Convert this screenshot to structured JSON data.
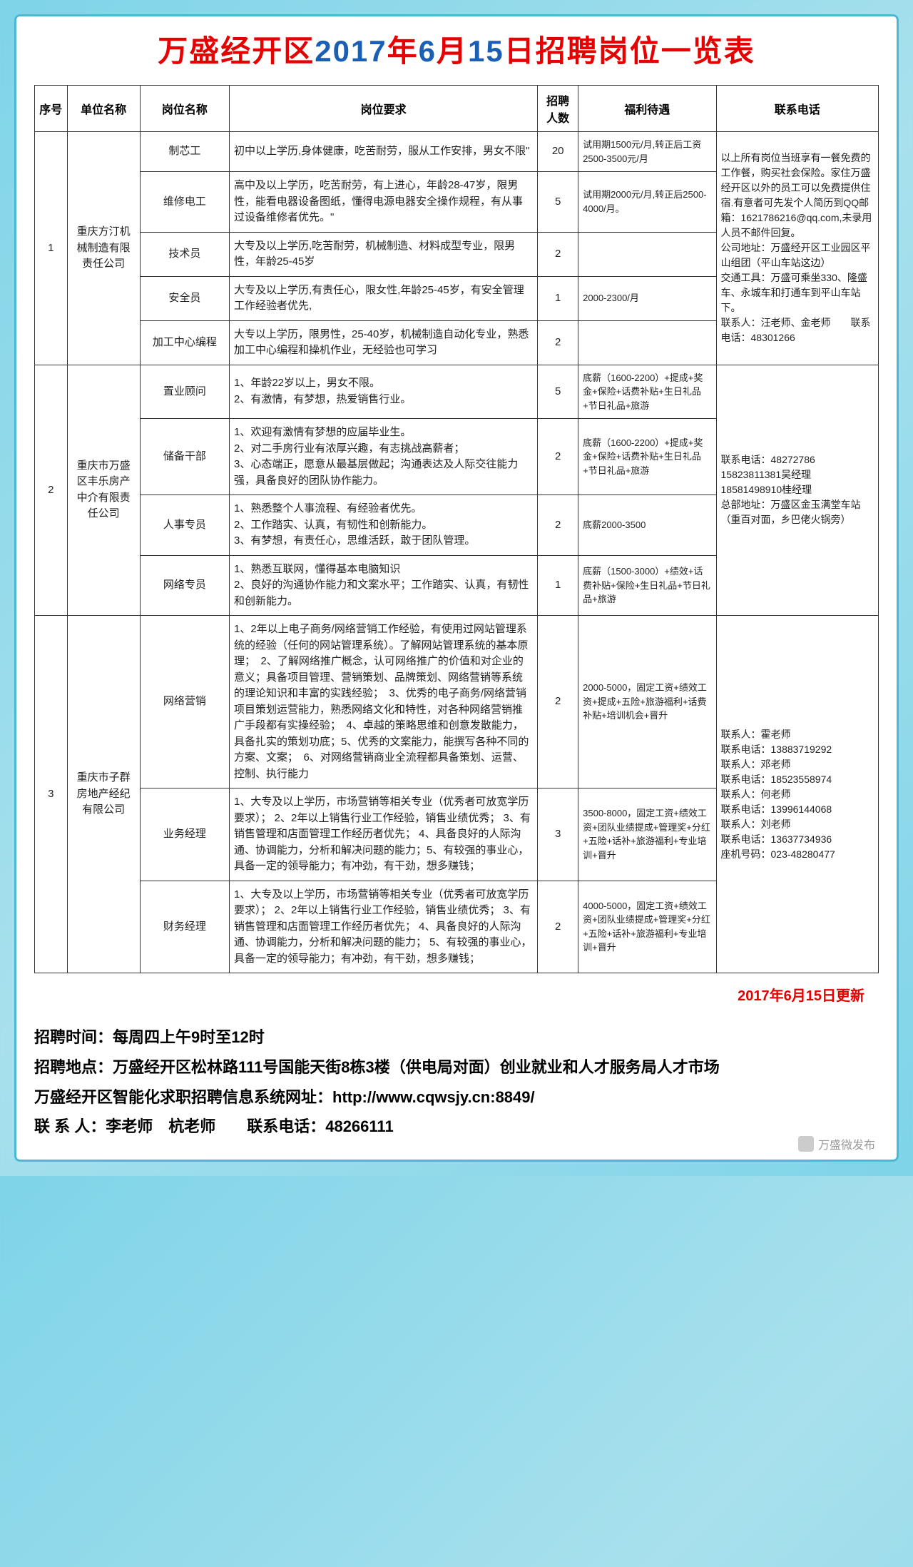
{
  "title_parts": {
    "p1": "万盛经开区",
    "p2": "2017",
    "p3": "年",
    "p4": "6",
    "p5": "月",
    "p6": "15",
    "p7": "日招聘岗位一览表"
  },
  "headers": {
    "seq": "序号",
    "company": "单位名称",
    "position": "岗位名称",
    "req": "岗位要求",
    "count": "招聘人数",
    "benefit": "福利待遇",
    "contact": "联系电话"
  },
  "companies": [
    {
      "seq": "1",
      "name": "重庆方汀机械制造有限责任公司",
      "contact": "以上所有岗位当班享有一餐免费的工作餐，购买社会保险。家住万盛经开区以外的员工可以免费提供住宿.有意者可先发个人简历到QQ邮箱：1621786216@qq.com,未录用人员不邮件回复。\n公司地址：万盛经开区工业园区平山组团（平山车站这边）\n交通工具：万盛可乘坐330、隆盛车、永城车和打通车到平山车站下。\n联系人：汪老师、金老师　　联系电话：48301266",
      "positions": [
        {
          "name": "制芯工",
          "req": "初中以上学历,身体健康，吃苦耐劳，服从工作安排，男女不限\"",
          "count": "20",
          "benefit": "试用期1500元/月,转正后工资2500-3500元/月"
        },
        {
          "name": "维修电工",
          "req": "高中及以上学历，吃苦耐劳，有上进心，年龄28-47岁，限男性，能看电器设备图纸，懂得电源电器安全操作规程，有从事过设备维修者优先。\"",
          "count": "5",
          "benefit": "试用期2000元/月,转正后2500-4000/月。"
        },
        {
          "name": "技术员",
          "req": "大专及以上学历,吃苦耐劳，机械制造、材料成型专业，限男性，年龄25-45岁",
          "count": "2",
          "benefit": ""
        },
        {
          "name": "安全员",
          "req": "大专及以上学历,有责任心，限女性,年龄25-45岁，有安全管理工作经验者优先,",
          "count": "1",
          "benefit": "2000-2300/月"
        },
        {
          "name": "加工中心编程",
          "req": "大专以上学历，限男性，25-40岁，机械制造自动化专业，熟悉加工中心编程和操机作业，无经验也可学习",
          "count": "2",
          "benefit": ""
        }
      ]
    },
    {
      "seq": "2",
      "name": "重庆市万盛区丰乐房产中介有限责任公司",
      "contact": "联系电话：48272786\n15823811381吴经理\n18581498910桂经理\n总部地址：万盛区金玉满堂车站（重百对面，乡巴佬火锅旁）",
      "positions": [
        {
          "name": "置业顾问",
          "req": "1、年龄22岁以上，男女不限。\n2、有激情，有梦想，热爱销售行业。",
          "count": "5",
          "benefit": "底薪（1600-2200）+提成+奖金+保险+话费补贴+生日礼品+节日礼品+旅游"
        },
        {
          "name": "储备干部",
          "req": "1、欢迎有激情有梦想的应届毕业生。\n2、对二手房行业有浓厚兴趣，有志挑战高薪者；\n3、心态端正，愿意从最基层做起；沟通表达及人际交往能力强，具备良好的团队协作能力。",
          "count": "2",
          "benefit": "底薪（1600-2200）+提成+奖金+保险+话费补贴+生日礼品+节日礼品+旅游"
        },
        {
          "name": "人事专员",
          "req": "1、熟悉整个人事流程、有经验者优先。\n2、工作踏实、认真，有韧性和创新能力。\n3、有梦想，有责任心，思维活跃，敢于团队管理。",
          "count": "2",
          "benefit": "底薪2000-3500"
        },
        {
          "name": "网络专员",
          "req": "1、熟悉互联网，懂得基本电脑知识\n2、良好的沟通协作能力和文案水平；工作踏实、认真，有韧性和创新能力。",
          "count": "1",
          "benefit": "底薪（1500-3000）+绩效+话费补贴+保险+生日礼品+节日礼品+旅游"
        }
      ]
    },
    {
      "seq": "3",
      "name": "重庆市子群房地产经纪有限公司",
      "contact": "联系人：霍老师\n联系电话：13883719292\n联系人：邓老师\n联系电话：18523558974\n联系人：何老师\n联系电话：13996144068\n联系人：刘老师\n联系电话：13637734936\n座机号码：023-48280477",
      "positions": [
        {
          "name": "网络营销",
          "req": "1、2年以上电子商务/网络营销工作经验，有使用过网站管理系统的经验（任何的网站管理系统）。了解网站管理系统的基本原理；　2、了解网络推广概念，认可网络推广的价值和对企业的意义；具备项目管理、营销策划、品牌策划、网络营销等系统的理论知识和丰富的实践经验；　3、优秀的电子商务/网络营销项目策划运营能力，熟悉网络文化和特性，对各种网络营销推广手段都有实操经验；　4、卓越的策略思维和创意发散能力，具备扎实的策划功底；5、优秀的文案能力，能撰写各种不同的方案、文案；　6、对网络营销商业全流程都具备策划、运营、控制、执行能力",
          "count": "2",
          "benefit": "2000-5000，固定工资+绩效工资+提成+五险+旅游福利+话费补贴+培训机会+晋升"
        },
        {
          "name": "业务经理",
          "req": "1、大专及以上学历，市场营销等相关专业（优秀者可放宽学历要求）； 2、2年以上销售行业工作经验，销售业绩优秀； 3、有销售管理和店面管理工作经历者优先； 4、具备良好的人际沟通、协调能力，分析和解决问题的能力；5、有较强的事业心，具备一定的领导能力；有冲劲，有干劲，想多赚钱；",
          "count": "3",
          "benefit": "3500-8000，固定工资+绩效工资+团队业绩提成+管理奖+分红+五险+话补+旅游福利+专业培训+晋升"
        },
        {
          "name": "财务经理",
          "req": "1、大专及以上学历，市场营销等相关专业（优秀者可放宽学历要求）； 2、2年以上销售行业工作经验，销售业绩优秀； 3、有销售管理和店面管理工作经历者优先； 4、具备良好的人际沟通、协调能力，分析和解决问题的能力； 5、有较强的事业心，具备一定的领导能力；有冲劲，有干劲，想多赚钱；",
          "count": "2",
          "benefit": "4000-5000，固定工资+绩效工资+团队业绩提成+管理奖+分红+五险+话补+旅游福利+专业培训+晋升"
        }
      ]
    }
  ],
  "update_date": "2017年6月15日更新",
  "footer": {
    "line1": "招聘时间：每周四上午9时至12时",
    "line2": "招聘地点：万盛经开区松林路111号国能天街8栋3楼（供电局对面）创业就业和人才服务局人才市场",
    "line3": "万盛经开区智能化求职招聘信息系统网址：http://www.cqwsjy.cn:8849/",
    "line4": "联 系 人：李老师　杭老师　　联系电话：48266111"
  },
  "watermark": "万盛微发布"
}
